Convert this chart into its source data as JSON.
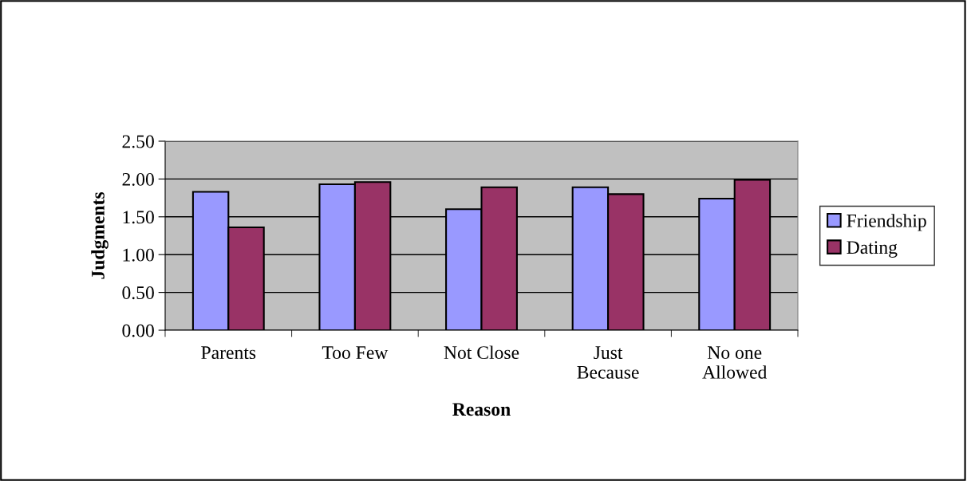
{
  "chart_data": {
    "type": "bar",
    "xlabel": "Reason",
    "ylabel": "Judgments",
    "categories": [
      "Parents",
      "Too Few",
      "Not Close",
      "Just\nBecause",
      "No one\nAllowed"
    ],
    "series": [
      {
        "name": "Friendship",
        "color": "#9999ff",
        "values": [
          1.83,
          1.93,
          1.6,
          1.89,
          1.74
        ]
      },
      {
        "name": "Dating",
        "color": "#993366",
        "values": [
          1.36,
          1.96,
          1.89,
          1.8,
          1.99
        ]
      }
    ],
    "ylim": [
      0,
      2.5
    ],
    "yticks": [
      {
        "value": 0,
        "label": "0.00"
      },
      {
        "value": 0.5,
        "label": "0.50"
      },
      {
        "value": 1,
        "label": "1.00"
      },
      {
        "value": 1.5,
        "label": "1.50"
      },
      {
        "value": 2,
        "label": "2.00"
      },
      {
        "value": 2.5,
        "label": "2.50"
      }
    ],
    "grid": "y",
    "legend": "right"
  }
}
